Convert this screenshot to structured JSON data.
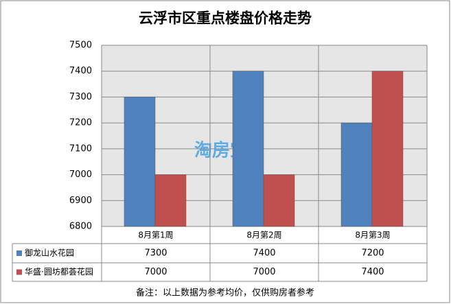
{
  "chart_data": {
    "type": "bar",
    "title": "云浮市区重点楼盘价格走势",
    "categories": [
      "8月第1周",
      "8月第2周",
      "8月第3周"
    ],
    "series": [
      {
        "name": "御龙山水花园",
        "color": "#4f81bd",
        "values": [
          7300,
          7400,
          7200
        ]
      },
      {
        "name": "华盛·圆坊都荟花园",
        "color": "#c0504d",
        "values": [
          7000,
          7000,
          7400
        ]
      }
    ],
    "ylim": [
      6800,
      7500
    ],
    "yticks": [
      6800,
      6900,
      7000,
      7100,
      7200,
      7300,
      7400,
      7500
    ],
    "grid": true,
    "watermark": "淘房宝",
    "note": "备注：以上数据为参考均价，仅供购房者参考"
  }
}
